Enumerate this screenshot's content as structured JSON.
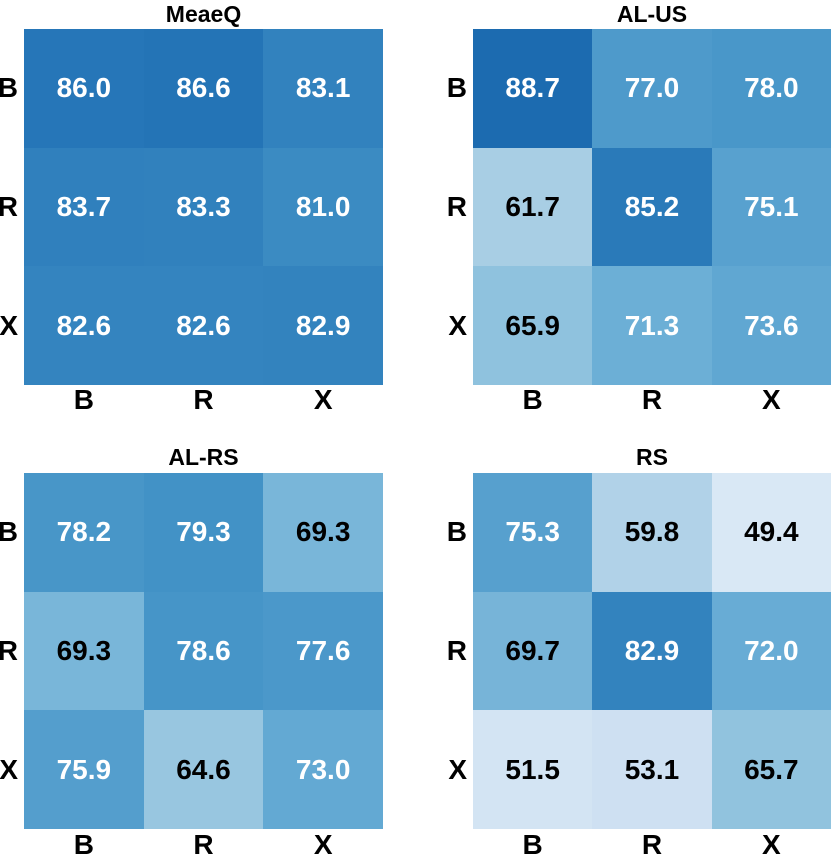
{
  "figure": {
    "background": "#ffffff",
    "colormap": "Blues",
    "label_color": "#000000",
    "white_text_threshold": 70,
    "value_text_above": "#ffffff",
    "value_text_below": "#000000",
    "colorbar": false,
    "gridlines": false
  },
  "chart_data": [
    {
      "type": "heatmap",
      "title": "MeaeQ",
      "row_labels": [
        "B",
        "R",
        "X"
      ],
      "col_labels": [
        "B",
        "R",
        "X"
      ],
      "values": [
        [
          86.0,
          86.6,
          83.1
        ],
        [
          83.7,
          83.3,
          81.0
        ],
        [
          82.6,
          82.6,
          82.9
        ]
      ],
      "cell_colors": [
        [
          "#2676b8",
          "#2474b6",
          "#3282be"
        ],
        [
          "#3080bd",
          "#3181bd",
          "#3b8bc2"
        ],
        [
          "#3484bf",
          "#3484bf",
          "#3383be"
        ]
      ]
    },
    {
      "type": "heatmap",
      "title": "AL-US",
      "row_labels": [
        "B",
        "R",
        "X"
      ],
      "col_labels": [
        "B",
        "R",
        "X"
      ],
      "values": [
        [
          88.7,
          77.0,
          78.0
        ],
        [
          61.7,
          85.2,
          75.1
        ],
        [
          65.9,
          71.3,
          73.6
        ]
      ],
      "cell_colors": [
        [
          "#1c6bb0",
          "#4e9acb",
          "#4997c9"
        ],
        [
          "#a8cee4",
          "#2a7ab9",
          "#58a1cf"
        ],
        [
          "#8fc2de",
          "#6cafd6",
          "#60a7d2"
        ]
      ]
    },
    {
      "type": "heatmap",
      "title": "AL-RS",
      "row_labels": [
        "B",
        "R",
        "X"
      ],
      "col_labels": [
        "B",
        "R",
        "X"
      ],
      "values": [
        [
          78.2,
          79.3,
          69.3
        ],
        [
          69.3,
          78.6,
          77.6
        ],
        [
          75.9,
          64.6,
          73.0
        ]
      ],
      "cell_colors": [
        [
          "#4896c8",
          "#4292c6",
          "#79b6d9"
        ],
        [
          "#79b6d9",
          "#4695c8",
          "#4b98ca"
        ],
        [
          "#549ecd",
          "#98c6e0",
          "#63a9d3"
        ]
      ]
    },
    {
      "type": "heatmap",
      "title": "RS",
      "row_labels": [
        "B",
        "R",
        "X"
      ],
      "col_labels": [
        "B",
        "R",
        "X"
      ],
      "values": [
        [
          75.3,
          59.8,
          49.4
        ],
        [
          69.7,
          82.9,
          72.0
        ],
        [
          51.5,
          53.1,
          65.7
        ]
      ],
      "cell_colors": [
        [
          "#57a0ce",
          "#b1d2e8",
          "#d9e8f5"
        ],
        [
          "#77b4d8",
          "#3383be",
          "#68acd5"
        ],
        [
          "#d3e4f3",
          "#cee0f2",
          "#91c3de"
        ]
      ]
    }
  ]
}
